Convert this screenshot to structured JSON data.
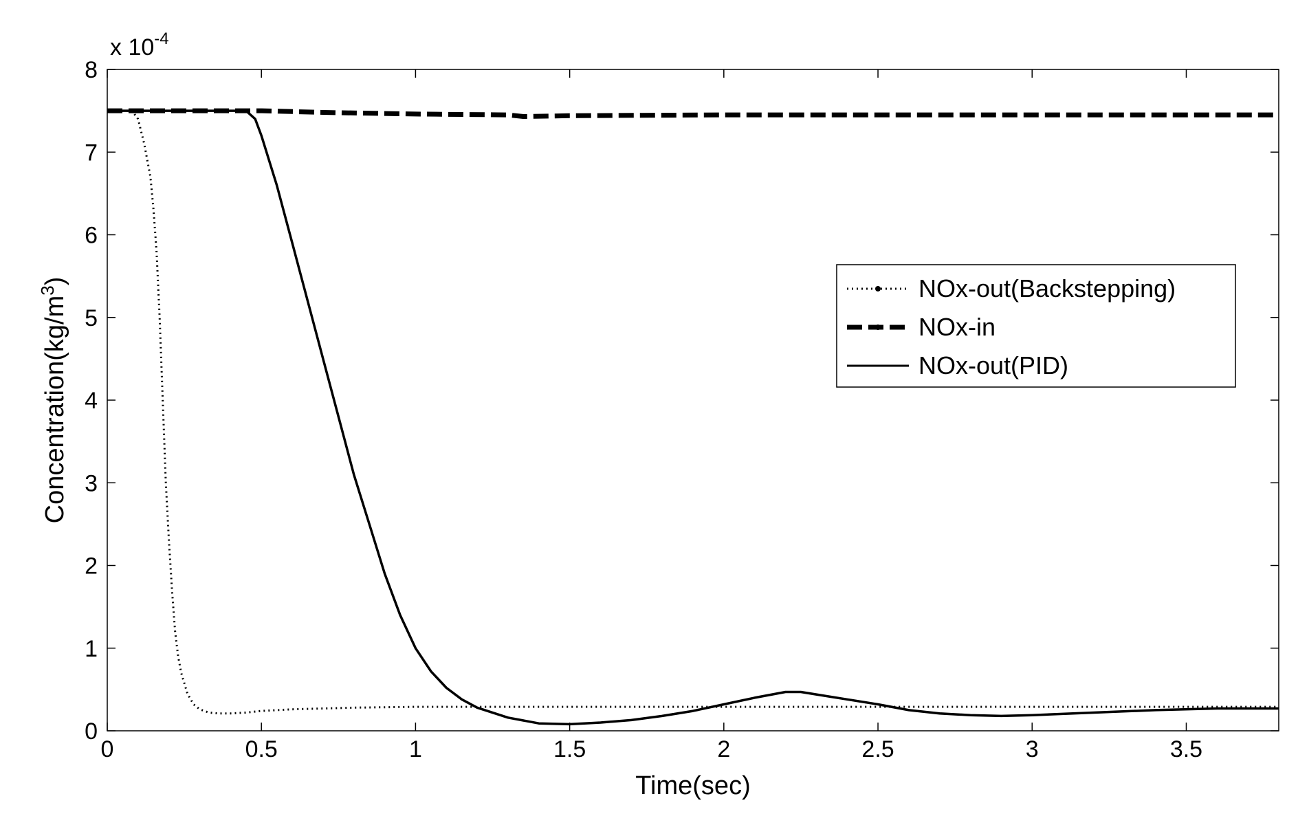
{
  "chart_data": {
    "type": "line",
    "xlabel": "Time(sec)",
    "ylabel": "Concentration(kg/m",
    "ylabel_sup": "3",
    "ylabel_end": ")",
    "scale_prefix": "x 10",
    "scale_exp": "-4",
    "xlim": [
      0,
      3.8
    ],
    "ylim": [
      0,
      8
    ],
    "xticks": [
      0,
      0.5,
      1,
      1.5,
      2,
      2.5,
      3,
      3.5
    ],
    "xtick_labels": [
      "0",
      "0.5",
      "1",
      "1.5",
      "2",
      "2.5",
      "3",
      "3.5"
    ],
    "yticks": [
      0,
      1,
      2,
      3,
      4,
      5,
      6,
      7,
      8
    ],
    "ytick_labels": [
      "0",
      "1",
      "2",
      "3",
      "4",
      "5",
      "6",
      "7",
      "8"
    ],
    "grid": false,
    "legend_position": "center-right",
    "series": [
      {
        "name": "NOx-out(Backstepping)",
        "style": "dotted",
        "color": "#000000",
        "x": [
          0,
          0.08,
          0.1,
          0.12,
          0.14,
          0.15,
          0.16,
          0.17,
          0.18,
          0.19,
          0.2,
          0.21,
          0.22,
          0.23,
          0.24,
          0.26,
          0.28,
          0.3,
          0.33,
          0.36,
          0.4,
          0.45,
          0.5,
          0.6,
          0.7,
          0.8,
          1.0,
          1.5,
          2.0,
          2.5,
          3.0,
          3.5,
          3.8
        ],
        "y": [
          7.5,
          7.5,
          7.4,
          7.1,
          6.7,
          6.3,
          5.8,
          5.0,
          4.0,
          3.0,
          2.3,
          1.7,
          1.2,
          0.9,
          0.7,
          0.45,
          0.32,
          0.26,
          0.22,
          0.21,
          0.21,
          0.22,
          0.24,
          0.26,
          0.27,
          0.28,
          0.29,
          0.29,
          0.29,
          0.29,
          0.29,
          0.29,
          0.29
        ]
      },
      {
        "name": "NOx-in",
        "style": "dashed",
        "color": "#000000",
        "x": [
          0,
          0.5,
          0.6,
          0.7,
          1.0,
          1.3,
          1.35,
          1.5,
          2.0,
          2.5,
          3.0,
          3.5,
          3.8
        ],
        "y": [
          7.5,
          7.5,
          7.49,
          7.48,
          7.46,
          7.45,
          7.43,
          7.44,
          7.45,
          7.45,
          7.45,
          7.45,
          7.45
        ]
      },
      {
        "name": "NOx-out(PID)",
        "style": "solid",
        "color": "#000000",
        "x": [
          0,
          0.45,
          0.48,
          0.5,
          0.55,
          0.6,
          0.65,
          0.7,
          0.75,
          0.8,
          0.85,
          0.9,
          0.95,
          1.0,
          1.05,
          1.1,
          1.15,
          1.2,
          1.3,
          1.4,
          1.5,
          1.6,
          1.7,
          1.8,
          1.9,
          2.0,
          2.1,
          2.2,
          2.25,
          2.3,
          2.4,
          2.5,
          2.6,
          2.7,
          2.8,
          2.9,
          3.0,
          3.2,
          3.4,
          3.6,
          3.8
        ],
        "y": [
          7.5,
          7.5,
          7.4,
          7.2,
          6.6,
          5.9,
          5.2,
          4.5,
          3.8,
          3.1,
          2.5,
          1.9,
          1.4,
          1.0,
          0.72,
          0.52,
          0.38,
          0.28,
          0.16,
          0.09,
          0.08,
          0.1,
          0.13,
          0.18,
          0.24,
          0.32,
          0.4,
          0.47,
          0.47,
          0.44,
          0.38,
          0.32,
          0.25,
          0.21,
          0.19,
          0.18,
          0.19,
          0.22,
          0.25,
          0.27,
          0.27
        ]
      }
    ]
  }
}
